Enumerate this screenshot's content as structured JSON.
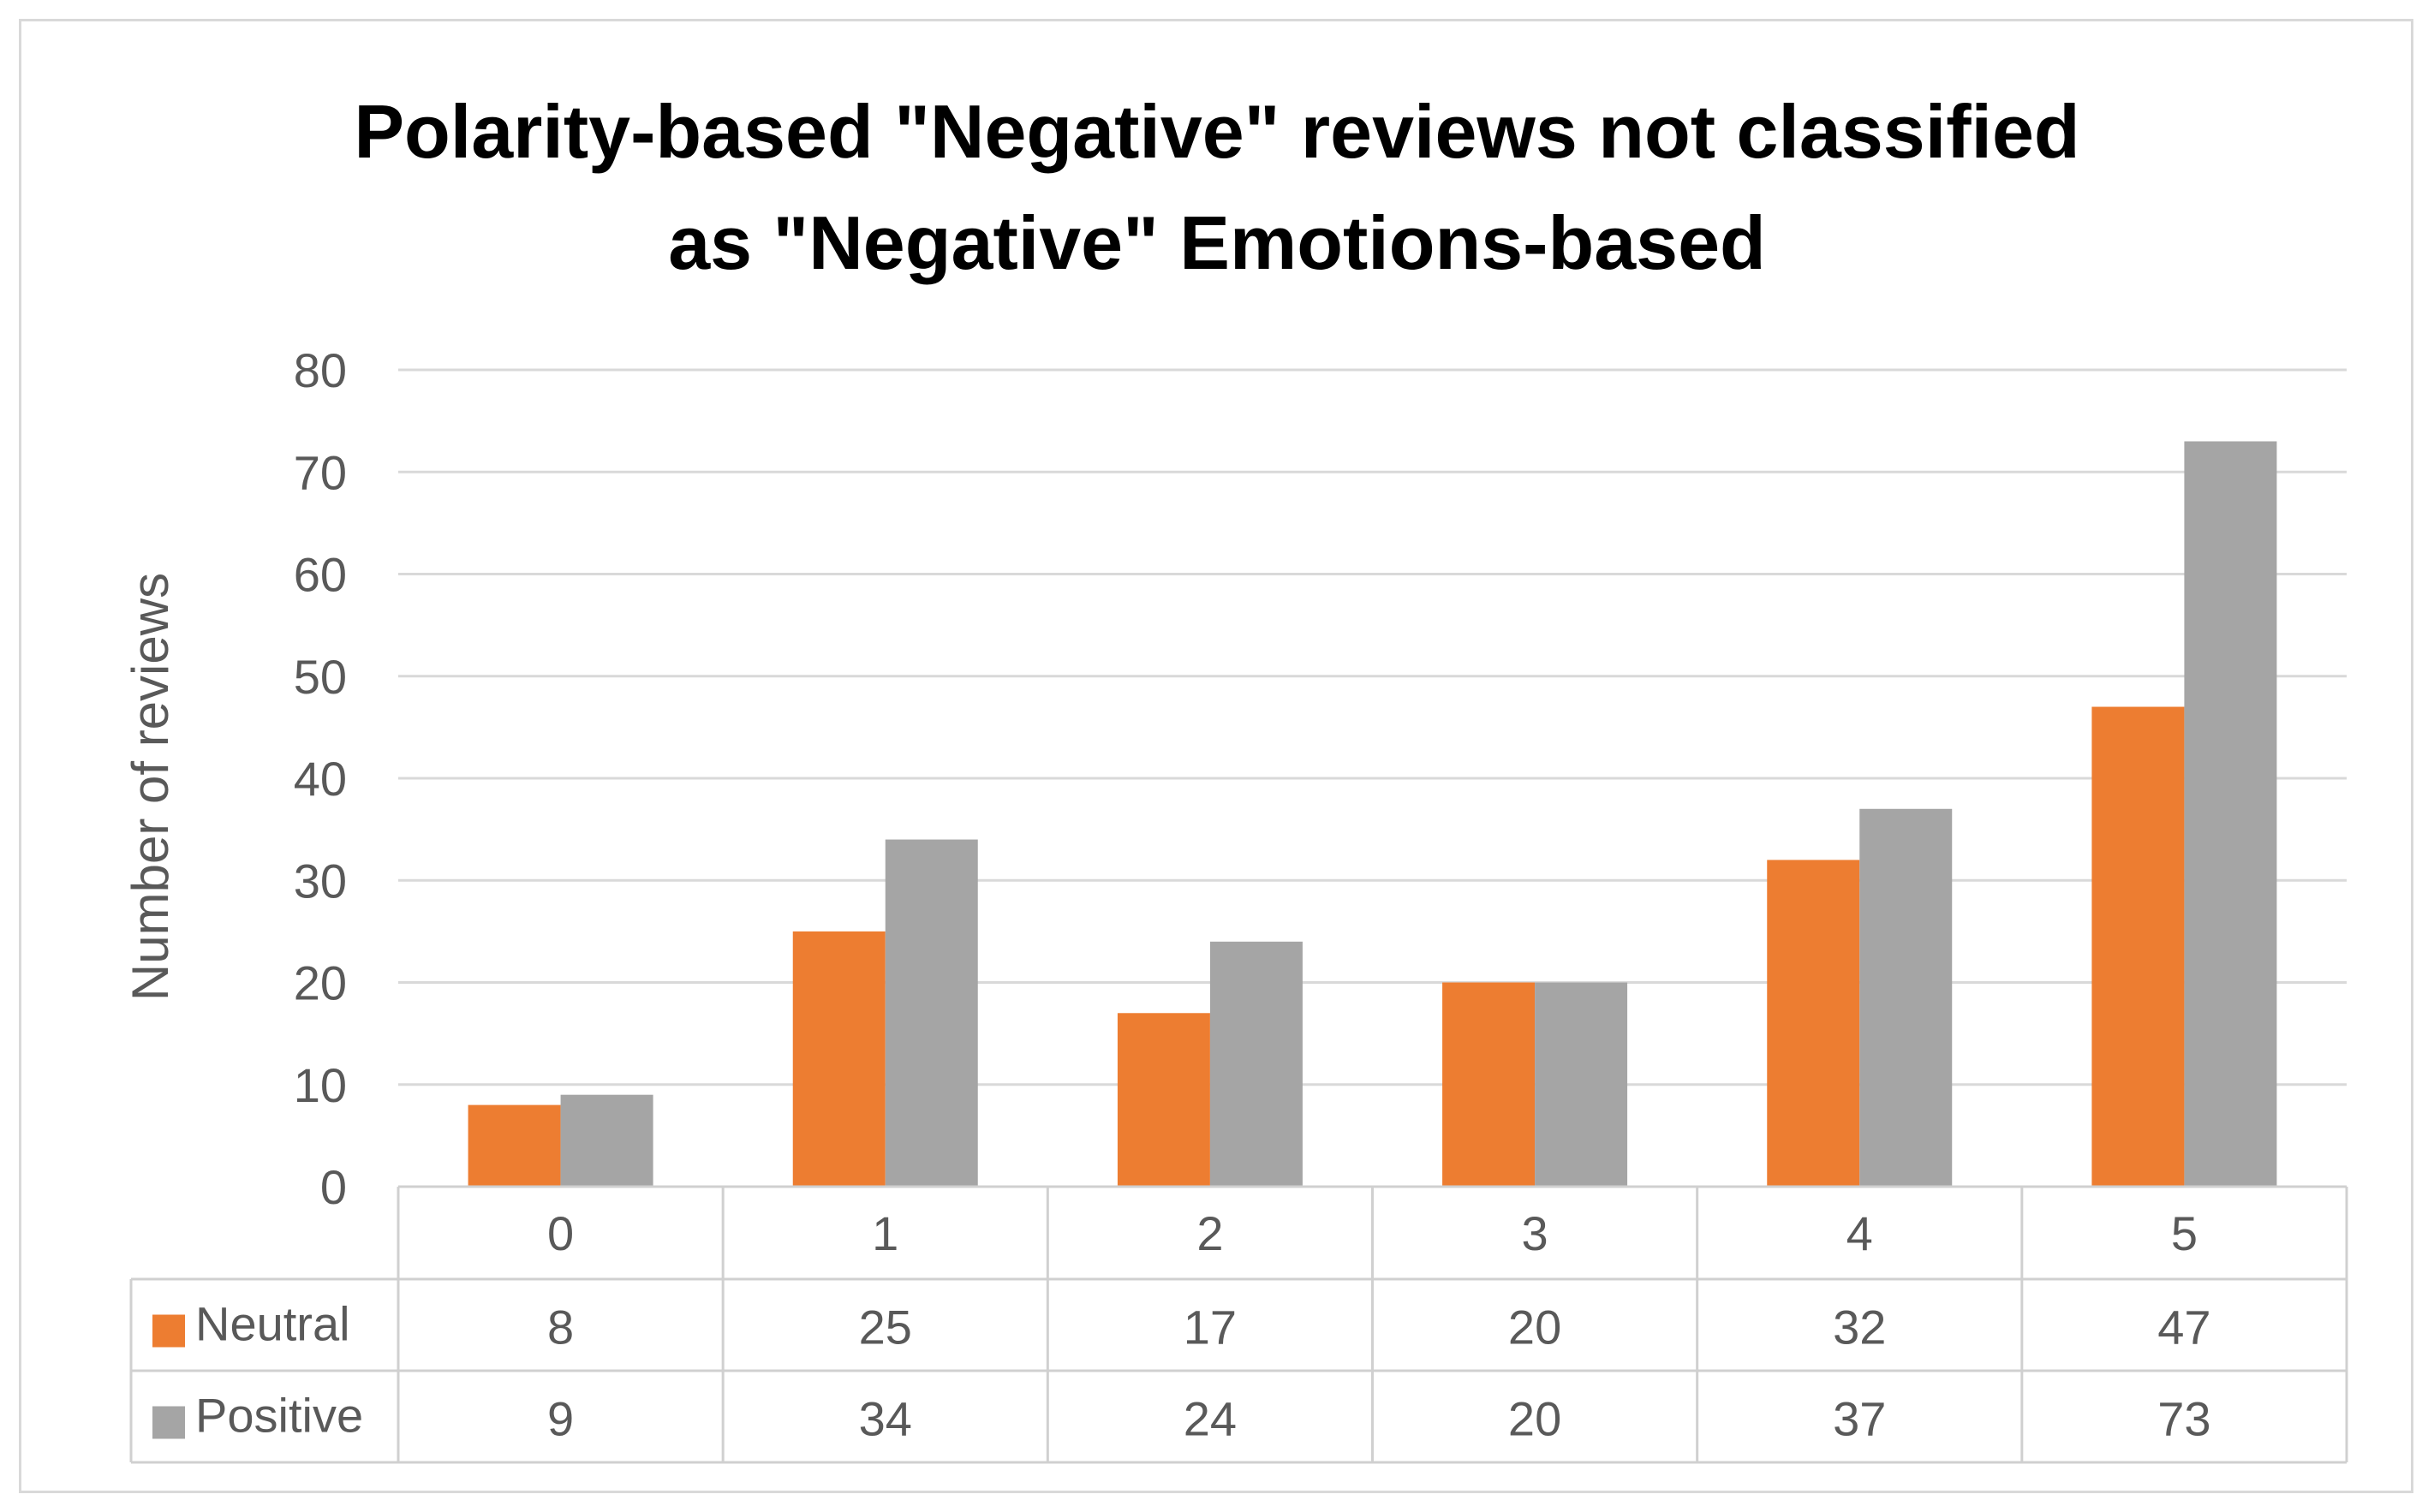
{
  "chart_data": {
    "type": "bar",
    "title_lines": [
      "Polarity-based \"Negative\" reviews not classified",
      "as \"Negative\" Emotions-based"
    ],
    "xlabel": "",
    "ylabel": "Number of reviews",
    "ylim": [
      0,
      80
    ],
    "yticks": [
      "0",
      "10",
      "20",
      "30",
      "40",
      "50",
      "60",
      "70",
      "80"
    ],
    "grid": true,
    "categories": [
      "0",
      "1",
      "2",
      "3",
      "4",
      "5"
    ],
    "series": [
      {
        "name": "Neutral",
        "color": "#ed7d31",
        "values": [
          8,
          25,
          17,
          20,
          32,
          47
        ]
      },
      {
        "name": "Positive",
        "color": "#a5a5a5",
        "values": [
          9,
          34,
          24,
          20,
          37,
          73
        ]
      }
    ],
    "data_table": true
  }
}
